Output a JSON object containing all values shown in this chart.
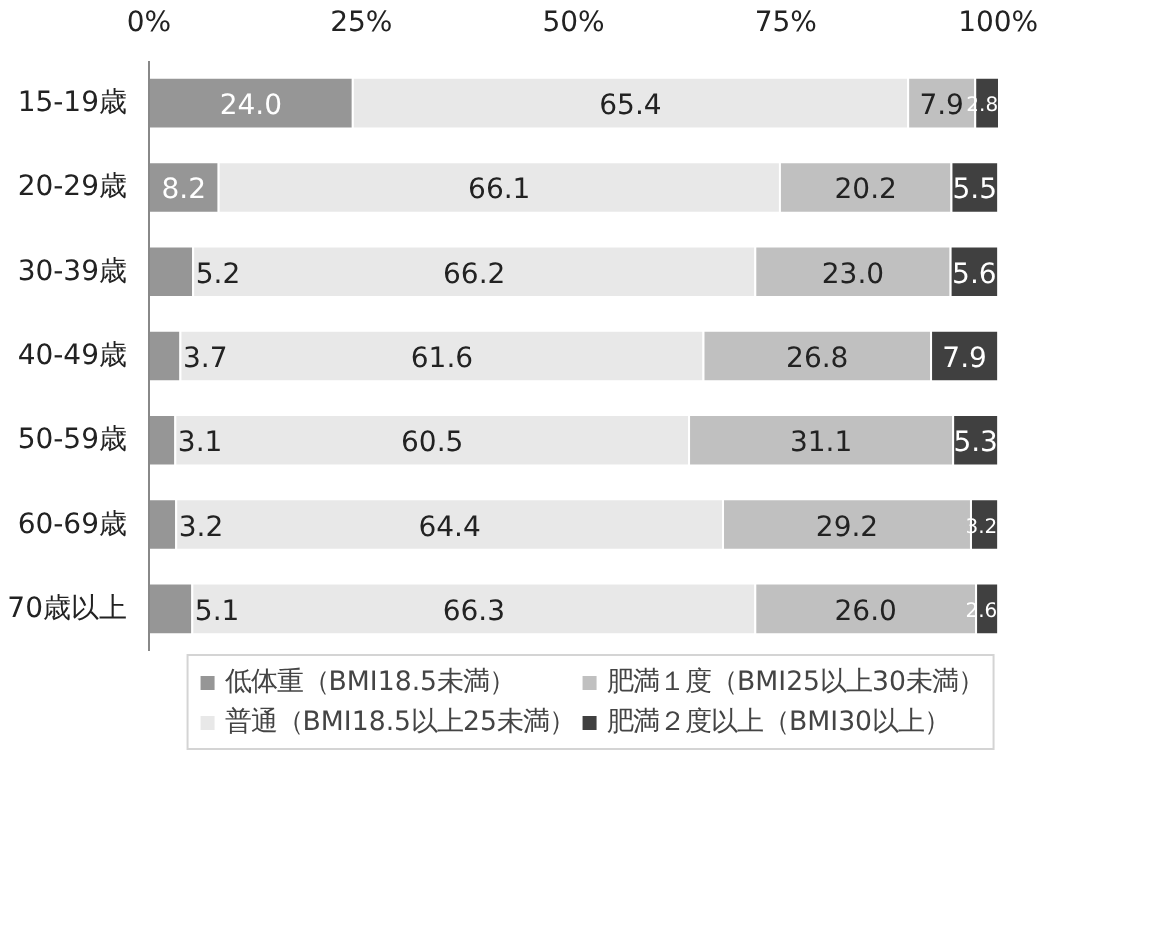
{
  "chart_data": {
    "type": "bar",
    "orientation": "horizontal",
    "stacked": true,
    "grid": false,
    "legend": "bottom",
    "categories": [
      "15-19歳",
      "20-29歳",
      "30-39歳",
      "40-49歳",
      "50-59歳",
      "60-69歳",
      "70歳以上"
    ],
    "xlim": [
      0,
      100.1
    ],
    "xticks": [
      {
        "value": 0,
        "label": "0%"
      },
      {
        "value": 25,
        "label": "25%"
      },
      {
        "value": 50,
        "label": "50%"
      },
      {
        "value": 75,
        "label": "75%"
      },
      {
        "value": 100,
        "label": "100%"
      }
    ],
    "series": [
      {
        "name": "低体重（BMI18.5未満）",
        "color": "#969696",
        "values": [
          24.0,
          8.2,
          5.2,
          3.7,
          3.1,
          3.2,
          5.1
        ],
        "value_labels": [
          "24.0",
          "8.2",
          "5.2",
          "3.7",
          "3.1",
          "3.2",
          "5.1"
        ]
      },
      {
        "name": "普通（BMI18.5以上25未満）",
        "color": "#e8e8e8",
        "values": [
          65.4,
          66.1,
          66.2,
          61.6,
          60.5,
          64.4,
          66.3
        ],
        "value_labels": [
          "65.4",
          "66.1",
          "66.2",
          "61.6",
          "60.5",
          "64.4",
          "66.3"
        ]
      },
      {
        "name": "肥満１度（BMI25以上30未満）",
        "color": "#c0c0c0",
        "values": [
          7.9,
          20.2,
          23.0,
          26.8,
          31.1,
          29.2,
          26.0
        ],
        "value_labels": [
          "7.9",
          "20.2",
          "23.0",
          "26.8",
          "31.1",
          "29.2",
          "26.0"
        ]
      },
      {
        "name": "肥満２度以上（BMI30以上）",
        "color": "#404040",
        "values": [
          2.8,
          5.5,
          5.6,
          7.9,
          5.3,
          3.2,
          2.6
        ],
        "value_labels": [
          "2.8",
          "5.5",
          "5.6",
          "7.9",
          "5.3",
          "3.2",
          "2.6"
        ]
      }
    ]
  }
}
